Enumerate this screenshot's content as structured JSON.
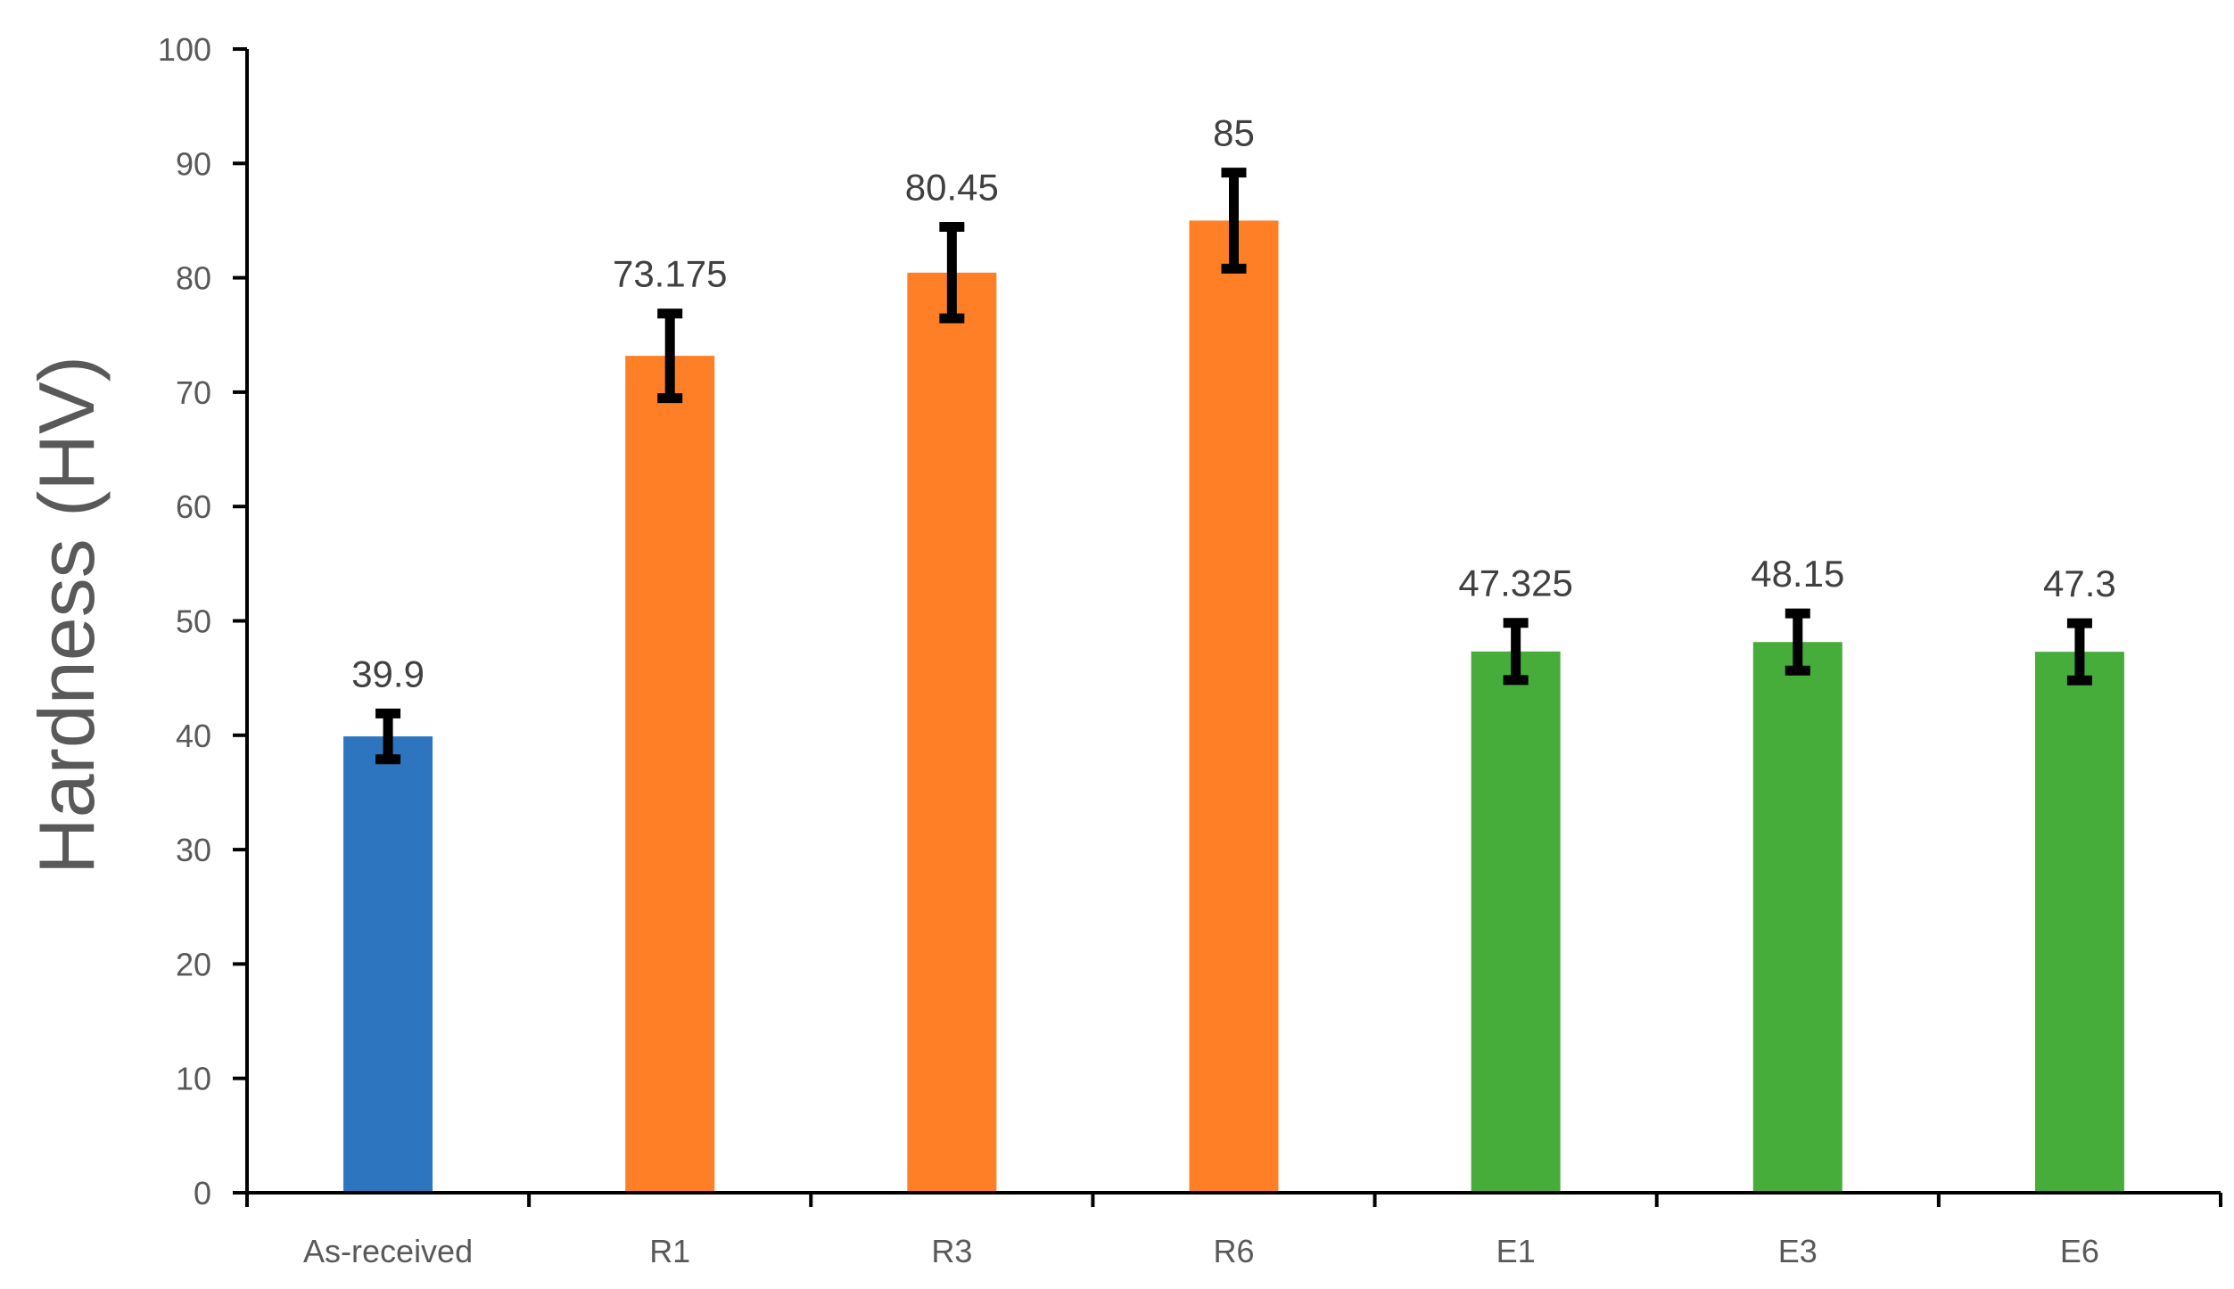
{
  "chart_data": {
    "type": "bar",
    "title": "",
    "xlabel": "",
    "ylabel": "Hardness (HV)",
    "ylim": [
      0,
      100
    ],
    "yticks": [
      0,
      10,
      20,
      30,
      40,
      50,
      60,
      70,
      80,
      90,
      100
    ],
    "ytick_labels": [
      "0",
      "10",
      "20",
      "30",
      "40",
      "50",
      "60",
      "70",
      "80",
      "90",
      "100"
    ],
    "categories": [
      "As-received",
      "R1",
      "R3",
      "R6",
      "E1",
      "E3",
      "E6"
    ],
    "values": [
      39.9,
      73.175,
      80.45,
      85,
      47.325,
      48.15,
      47.3
    ],
    "data_labels": [
      "39.9",
      "73.175",
      "80.45",
      "85",
      "47.325",
      "48.15",
      "47.3"
    ],
    "error": [
      2,
      3.7,
      4,
      4.2,
      2.5,
      2.5,
      2.5
    ],
    "bar_colors": [
      "#2e75c0",
      "#fe7f26",
      "#fe7f26",
      "#fe7f26",
      "#46ad3a",
      "#46ad3a",
      "#46ad3a"
    ],
    "grid": false,
    "legend": "none"
  }
}
